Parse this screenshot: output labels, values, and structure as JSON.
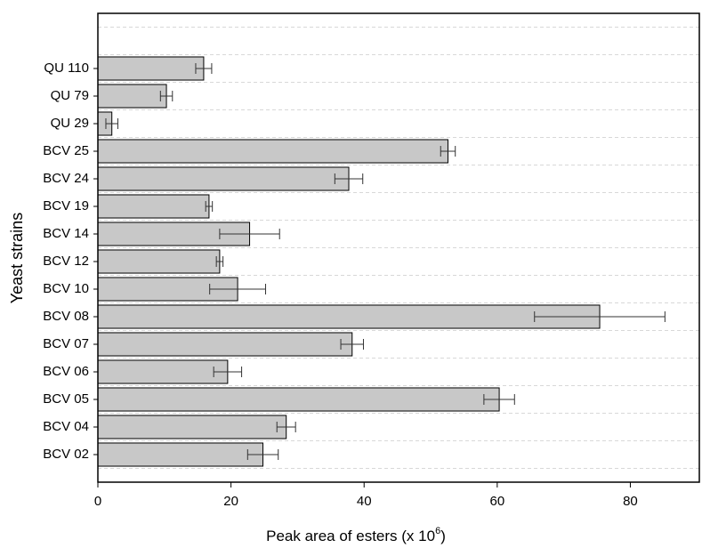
{
  "chart_data": {
    "type": "bar",
    "orientation": "horizontal",
    "xlabel": "Peak area of esters (x 10",
    "xlabel_exp": "6",
    "xlabel_end": ")",
    "ylabel": "Yeast strains",
    "categories": [
      "BCV 02",
      "BCV 04",
      "BCV 05",
      "BCV 06",
      "BCV 07",
      "BCV 08",
      "BCV 10",
      "BCV 12",
      "BCV 14",
      "BCV 19",
      "BCV 24",
      "BCV 25",
      "QU 29",
      "QU 79",
      "QU 110"
    ],
    "values": [
      24.8,
      28.3,
      60.3,
      19.5,
      38.2,
      75.4,
      21.0,
      18.3,
      22.8,
      16.7,
      37.7,
      52.6,
      2.1,
      10.3,
      15.9
    ],
    "errors": [
      2.3,
      1.4,
      2.3,
      2.1,
      1.7,
      9.8,
      4.2,
      0.5,
      4.5,
      0.5,
      2.1,
      1.1,
      0.9,
      0.9,
      1.2
    ],
    "color": "#c8c8c8",
    "xlim": [
      0,
      90.5
    ],
    "xticks": [
      0,
      20,
      40,
      60,
      80
    ],
    "grid": true
  }
}
